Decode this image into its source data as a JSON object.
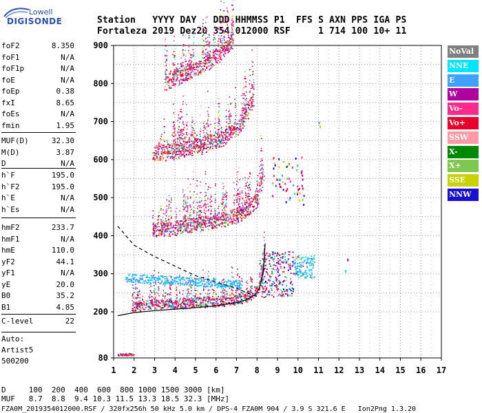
{
  "logo": {
    "line1": "Lowell",
    "line2": "DIGISONDE"
  },
  "header": {
    "line1": "Station   YYYY DAY   DDD HHMMSS P1  FFS S AXN PPS IGA PS",
    "line2": "Fortaleza 2019 Dez20 354 012000 RSF     1 714 100 10+ 11"
  },
  "params_group1": [
    {
      "name": "foF2",
      "value": "8.350"
    },
    {
      "name": "foF1",
      "value": "N/A"
    },
    {
      "name": "foF1p",
      "value": "N/A"
    },
    {
      "name": "foE",
      "value": "N/A"
    },
    {
      "name": "foEp",
      "value": "0.38"
    },
    {
      "name": "fxI",
      "value": "8.65"
    },
    {
      "name": "foEs",
      "value": "N/A"
    },
    {
      "name": "fmin",
      "value": "1.95"
    }
  ],
  "params_group2": [
    {
      "name": "MUF(D)",
      "value": "32.30"
    },
    {
      "name": "M(D)",
      "value": "3.87"
    },
    {
      "name": "D",
      "value": "N/A"
    }
  ],
  "params_group3": [
    {
      "name": "h`F",
      "value": "195.0"
    },
    {
      "name": "h`F2",
      "value": "195.0"
    },
    {
      "name": "h`E",
      "value": "N/A"
    },
    {
      "name": "h`Es",
      "value": "N/A"
    }
  ],
  "params_group4": [
    {
      "name": "hmF2",
      "value": "233.7"
    },
    {
      "name": "hmF1",
      "value": "N/A"
    },
    {
      "name": "hmE",
      "value": "110.0"
    },
    {
      "name": "yF2",
      "value": "44.1"
    },
    {
      "name": "yF1",
      "value": "N/A"
    },
    {
      "name": "yE",
      "value": "20.0"
    },
    {
      "name": "B0",
      "value": "35.2"
    },
    {
      "name": "B1",
      "value": "4.85"
    }
  ],
  "clevel": {
    "name": "C-level",
    "value": "22"
  },
  "auto": {
    "line1": "Auto:",
    "line2": "Artist5",
    "line3": "500200"
  },
  "legend": [
    {
      "label": "NoVal",
      "color": "#808080"
    },
    {
      "label": "NNE",
      "color": "#00e5ff"
    },
    {
      "label": "E",
      "color": "#3fa0ff"
    },
    {
      "label": "W",
      "color": "#b000a0"
    },
    {
      "label": "Vo-",
      "color": "#ff2a8c"
    },
    {
      "label": "Vo+",
      "color": "#e8002a"
    },
    {
      "label": "SSW",
      "color": "#ff9aa6"
    },
    {
      "label": "X-",
      "color": "#008800"
    },
    {
      "label": "X+",
      "color": "#7ec850"
    },
    {
      "label": "SSE",
      "color": "#c8d200"
    },
    {
      "label": "NNW",
      "color": "#1a10d0"
    }
  ],
  "bottom": {
    "line1": "D     100  200  400  600  800 1000 1500 3000 [km]",
    "line2": "MUF   8.7  8.8  9.4 10.3 11.5 13.3 18.5 32.3 [MHz]",
    "line3": "FZA0M_2019354012000.RSF / 320fx256h 50 kHz 5.0 km / DPS-4 FZA0M 904 / 3.9 S 321.6 E   Ion2Png 1.3.20"
  },
  "chart_data": {
    "type": "scatter",
    "x_ticks": [
      1,
      2,
      3,
      4,
      5,
      6,
      7,
      8,
      9,
      10,
      11,
      12,
      13,
      14,
      15,
      16,
      17
    ],
    "y_ticks": [
      80,
      200,
      300,
      400,
      500,
      600,
      700,
      800,
      900
    ],
    "xlim": [
      1,
      17
    ],
    "ylim": [
      80,
      900
    ],
    "grid": true,
    "traces": [
      {
        "name": "F-trace 1",
        "x": [
          1.9,
          2.5,
          3,
          3.5,
          4,
          4.5,
          5,
          5.5,
          6,
          6.5,
          7,
          7.5,
          8,
          8.2,
          8.35
        ],
        "y": [
          205,
          210,
          212,
          214,
          215,
          216,
          217,
          218,
          219,
          222,
          225,
          232,
          250,
          275,
          330
        ]
      },
      {
        "name": "F-trace 2",
        "x": [
          2.9,
          3.5,
          4,
          4.5,
          5,
          5.5,
          6,
          6.5,
          7,
          7.5,
          8,
          8.3
        ],
        "y": [
          402,
          404,
          408,
          412,
          416,
          420,
          425,
          432,
          440,
          455,
          480,
          550
        ]
      },
      {
        "name": "F-trace 3",
        "x": [
          2.9,
          3.5,
          4,
          4.5,
          5,
          5.5,
          6,
          6.5,
          7,
          7.3,
          7.5,
          7.8
        ],
        "y": [
          600,
          604,
          608,
          612,
          618,
          625,
          635,
          650,
          670,
          690,
          710,
          740
        ]
      },
      {
        "name": "F-trace 4",
        "x": [
          3.5,
          4,
          4.5,
          5,
          5.5,
          6,
          6.5,
          6.8
        ],
        "y": [
          790,
          800,
          810,
          822,
          838,
          858,
          880,
          900
        ]
      }
    ],
    "profile_solid": {
      "x": [
        1.2,
        2,
        3,
        4,
        5,
        6,
        7,
        7.5,
        7.9,
        8.1,
        8.3,
        8.4
      ],
      "y": [
        190,
        198,
        203,
        207,
        211,
        216,
        224,
        232,
        245,
        260,
        300,
        380
      ]
    },
    "profile_dashed": {
      "x": [
        1.2,
        2,
        3,
        4,
        5,
        6,
        7,
        7.5,
        8
      ],
      "y": [
        425,
        375,
        345,
        320,
        295,
        278,
        262,
        250,
        240
      ]
    }
  }
}
